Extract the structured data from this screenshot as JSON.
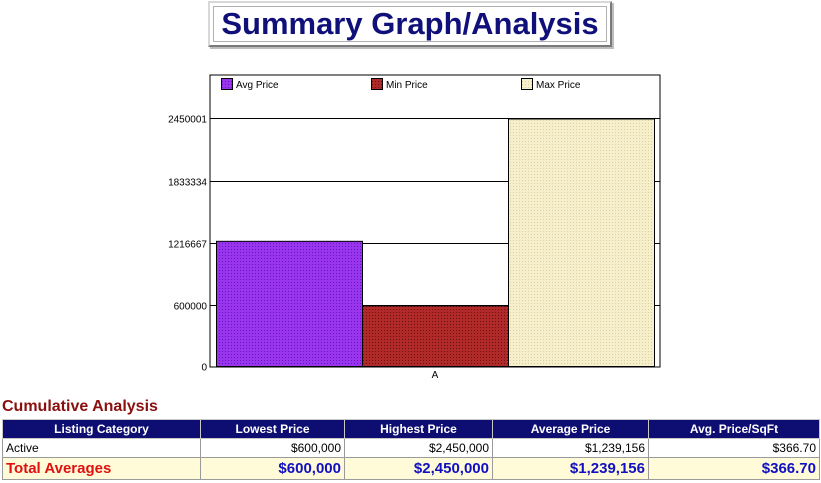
{
  "page": {
    "title": "Summary Graph/Analysis"
  },
  "chart_data": {
    "type": "bar",
    "categories": [
      "A"
    ],
    "series": [
      {
        "name": "Avg Price",
        "values": [
          1239156
        ],
        "color": "#9933ee"
      },
      {
        "name": "Min Price",
        "values": [
          600000
        ],
        "color": "#b02a2a"
      },
      {
        "name": "Max Price",
        "values": [
          2450000
        ],
        "color": "#f6ecc4"
      }
    ],
    "ylim": [
      0,
      2633000
    ],
    "yticks": [
      0,
      600000,
      1216667,
      1833334,
      2450001
    ],
    "ytick_labels": [
      "0",
      "600000",
      "1216667",
      "1833334",
      "2450001"
    ],
    "grid": true,
    "legend": "top"
  },
  "analysis": {
    "heading": "Cumulative Analysis",
    "columns": [
      "Listing Category",
      "Lowest Price",
      "Highest Price",
      "Average Price",
      "Avg. Price/SqFt"
    ],
    "rows": [
      {
        "category": "Active",
        "lowest": "$600,000",
        "highest": "$2,450,000",
        "average": "$1,239,156",
        "per_sqft": "$366.70"
      }
    ],
    "totals": {
      "label": "Total Averages",
      "lowest": "$600,000",
      "highest": "$2,450,000",
      "average": "$1,239,156",
      "per_sqft": "$366.70"
    }
  }
}
